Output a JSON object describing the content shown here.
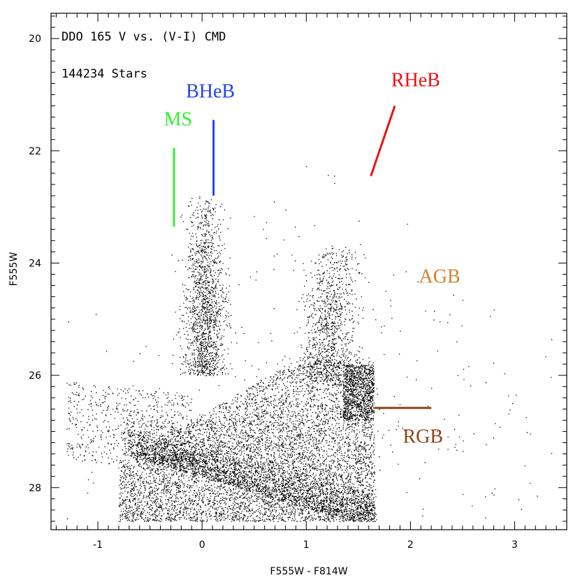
{
  "chart_data": {
    "type": "scatter",
    "title": "DDO 165 V vs. (V-I) CMD",
    "subtitle": "144234 Stars",
    "xlabel": "F555W - F814W",
    "ylabel": "F555W",
    "xlim": [
      -1.45,
      3.5
    ],
    "ylim": [
      28.75,
      19.55
    ],
    "y_inverted": true,
    "xticks": [
      -1,
      0,
      1,
      2,
      3
    ],
    "yticks": [
      20,
      22,
      24,
      26,
      28
    ],
    "grid": false,
    "legend": "none",
    "features": [
      {
        "label": "MS",
        "color": "#33ee33",
        "x": [
          -0.27,
          -0.27
        ],
        "y": [
          21.95,
          23.35
        ],
        "label_x": -0.23,
        "label_y": 21.55
      },
      {
        "label": "BHeB",
        "color": "#2244ee",
        "x": [
          0.11,
          0.11
        ],
        "y": [
          21.45,
          22.8
        ],
        "label_x": 0.08,
        "label_y": 21.05
      },
      {
        "label": "RHeB",
        "color": "#ee1111",
        "x": [
          1.62,
          1.85
        ],
        "y": [
          22.45,
          21.2
        ],
        "label_x": 2.05,
        "label_y": 20.85
      },
      {
        "label": "AGB",
        "color": "#d4822a",
        "x": [],
        "y": [],
        "label_x": 2.28,
        "label_y": 24.35
      },
      {
        "label": "RGB",
        "color": "#8b4513",
        "x": [
          1.65,
          2.2
        ],
        "y": [
          26.58,
          26.58
        ],
        "label_x": 2.12,
        "label_y": 27.2
      }
    ]
  }
}
